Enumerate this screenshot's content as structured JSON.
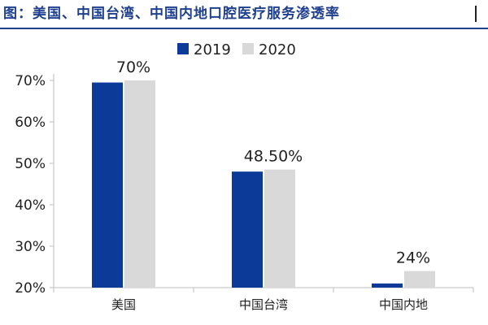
{
  "title": "图：美国、中国台湾、中国内地口腔医疗服务渗透率",
  "colors": {
    "title": "#1f3f8f",
    "series_2019": "#0c3a99",
    "series_2020": "#d9d9d9",
    "axis": "#bfbfbf"
  },
  "chart_data": {
    "type": "bar",
    "title": "美国、中国台湾、中国内地口腔医疗服务渗透率",
    "xlabel": "",
    "ylabel": "",
    "categories": [
      "美国",
      "中国台湾",
      "中国内地"
    ],
    "ylim": [
      20,
      70
    ],
    "yticks": [
      20,
      30,
      40,
      50,
      60,
      70
    ],
    "ytick_labels": [
      "20%",
      "30%",
      "40%",
      "50%",
      "60%",
      "70%"
    ],
    "legend_position": "top-center",
    "series": [
      {
        "name": "2019",
        "values": [
          69.5,
          48,
          21
        ]
      },
      {
        "name": "2020",
        "values": [
          70,
          48.5,
          24
        ]
      }
    ],
    "data_labels": [
      {
        "category": "美国",
        "series": "2020",
        "text": "70%"
      },
      {
        "category": "中国台湾",
        "series": "2020",
        "text": "48.50%"
      },
      {
        "category": "中国内地",
        "series": "2020",
        "text": "24%"
      }
    ]
  }
}
